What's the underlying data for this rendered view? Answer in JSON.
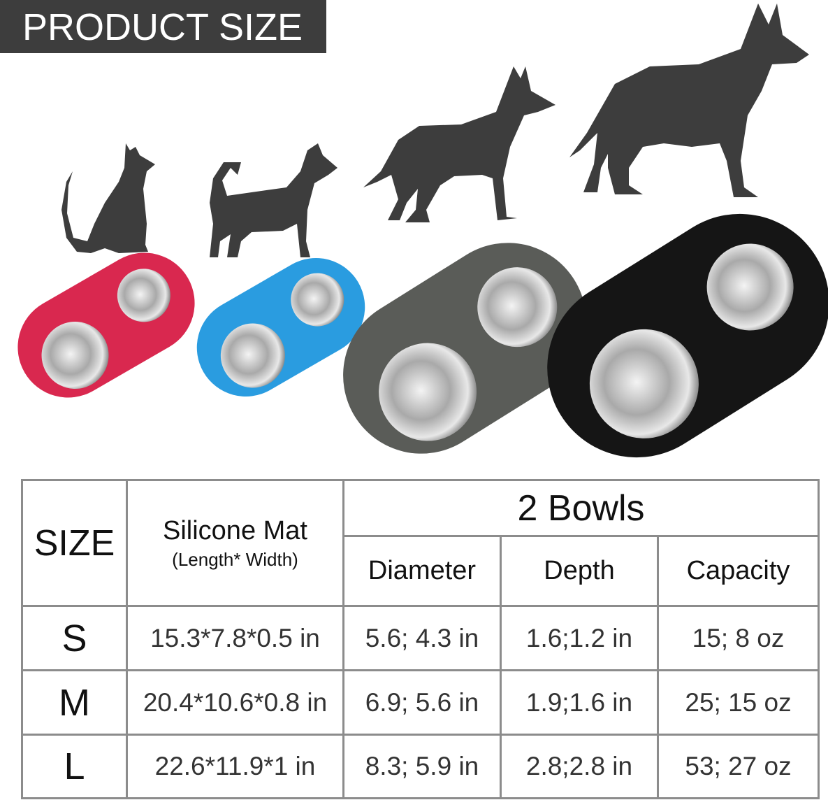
{
  "banner": {
    "title": "PRODUCT SIZE"
  },
  "colors": {
    "banner": "#3d3d3d",
    "silhouette": "#3d3d3d",
    "mat_small": "#d9284f",
    "mat_blue": "#2a9ce0",
    "mat_grey": "#5a5c58",
    "mat_black": "#151515"
  },
  "icons": [
    "cat-silhouette",
    "small-dog-silhouette",
    "medium-dog-silhouette",
    "large-dog-silhouette"
  ],
  "table": {
    "headers": {
      "size": "SIZE",
      "mat": "Silicone Mat",
      "mat_sub": "(Length* Width)",
      "bowls": "2 Bowls",
      "diameter": "Diameter",
      "depth": "Depth",
      "capacity": "Capacity"
    },
    "rows": [
      {
        "size": "S",
        "mat": "15.3*7.8*0.5 in",
        "diameter": "5.6; 4.3 in",
        "depth": "1.6;1.2  in",
        "capacity": "15; 8 oz"
      },
      {
        "size": "M",
        "mat": "20.4*10.6*0.8 in",
        "diameter": "6.9; 5.6 in",
        "depth": "1.9;1.6  in",
        "capacity": "25; 15 oz"
      },
      {
        "size": "L",
        "mat": "22.6*11.9*1 in",
        "diameter": "8.3; 5.9 in",
        "depth": "2.8;2.8  in",
        "capacity": "53; 27 oz"
      }
    ]
  }
}
